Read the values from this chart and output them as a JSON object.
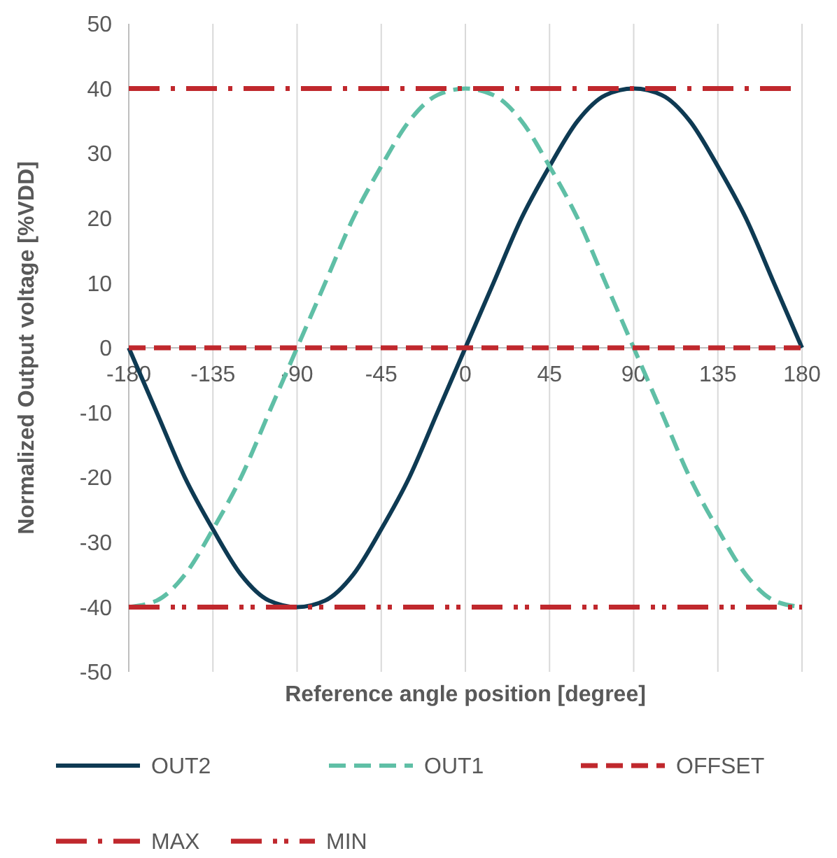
{
  "chart_data": {
    "type": "line",
    "xlabel": "Reference angle position [degree]",
    "ylabel": "Normalized Output voltage [%VDD]",
    "xlim": [
      -180,
      180
    ],
    "xticks": [
      -180,
      -135,
      -90,
      -45,
      0,
      45,
      90,
      135,
      180
    ],
    "ylim": [
      -50,
      50
    ],
    "yticks": [
      -50,
      -40,
      -30,
      -20,
      -10,
      0,
      10,
      20,
      30,
      40,
      50
    ],
    "grid": "x",
    "legend": "bottom",
    "marker": "none",
    "x": [
      -180,
      -165,
      -150,
      -135,
      -120,
      -105,
      -90,
      -75,
      -60,
      -45,
      -30,
      -15,
      0,
      15,
      30,
      45,
      60,
      75,
      90,
      105,
      120,
      135,
      150,
      165,
      180
    ],
    "series": [
      {
        "name": "OUT2",
        "color": "#0e3a53",
        "line_style": "solid",
        "values": [
          0,
          -10,
          -20,
          -28,
          -35,
          -39,
          -40,
          -39,
          -35,
          -28,
          -20,
          -10,
          0,
          10,
          20,
          28,
          35,
          39,
          40,
          39,
          35,
          28,
          20,
          10,
          0
        ]
      },
      {
        "name": "OUT1",
        "color": "#5fbfa6",
        "line_style": "dashed",
        "values": [
          -40,
          -39,
          -35,
          -28,
          -20,
          -10,
          0,
          10,
          20,
          28,
          35,
          39,
          40,
          39,
          35,
          28,
          20,
          10,
          0,
          -10,
          -20,
          -28,
          -35,
          -39,
          -40
        ]
      },
      {
        "name": "OFFSET",
        "color": "#c0282d",
        "line_style": "dashed",
        "values": [
          0,
          0,
          0,
          0,
          0,
          0,
          0,
          0,
          0,
          0,
          0,
          0,
          0,
          0,
          0,
          0,
          0,
          0,
          0,
          0,
          0,
          0,
          0,
          0,
          0
        ]
      },
      {
        "name": "MAX",
        "color": "#c0282d",
        "line_style": "dashdot",
        "values": [
          40,
          40,
          40,
          40,
          40,
          40,
          40,
          40,
          40,
          40,
          40,
          40,
          40,
          40,
          40,
          40,
          40,
          40,
          40,
          40,
          40,
          40,
          40,
          40,
          40
        ]
      },
      {
        "name": "MIN",
        "color": "#c0282d",
        "line_style": "dashdotdot",
        "values": [
          -40,
          -40,
          -40,
          -40,
          -40,
          -40,
          -40,
          -40,
          -40,
          -40,
          -40,
          -40,
          -40,
          -40,
          -40,
          -40,
          -40,
          -40,
          -40,
          -40,
          -40,
          -40,
          -40,
          -40,
          -40
        ]
      }
    ]
  }
}
